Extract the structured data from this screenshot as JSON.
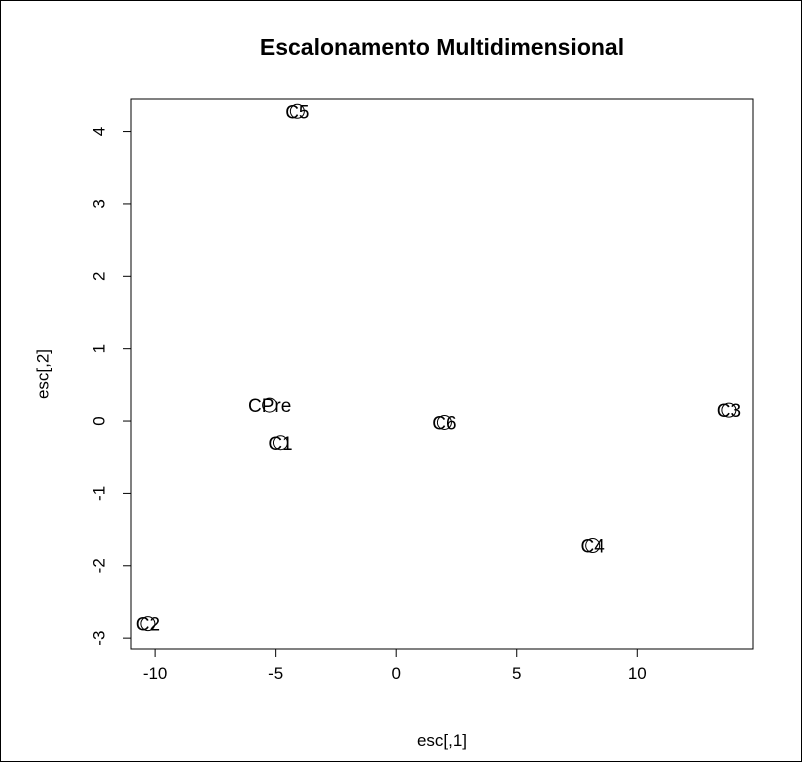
{
  "chart_data": {
    "type": "scatter",
    "title": "Escalonamento Multidimensional",
    "xlabel": "esc[,1]",
    "ylabel": "esc[,2]",
    "xlim": [
      -11.0,
      14.8
    ],
    "ylim": [
      -3.15,
      4.45
    ],
    "x_ticks": [
      -10,
      -5,
      0,
      5,
      10
    ],
    "y_ticks": [
      -3,
      -2,
      -1,
      0,
      1,
      2,
      3,
      4
    ],
    "grid": false,
    "legend": "none",
    "points": [
      {
        "label": "C5",
        "x": -4.1,
        "y": 4.28
      },
      {
        "label": "CPre",
        "x": -5.25,
        "y": 0.22
      },
      {
        "label": "C1",
        "x": -4.8,
        "y": -0.3
      },
      {
        "label": "C6",
        "x": 2.0,
        "y": -0.02
      },
      {
        "label": "C3",
        "x": 13.8,
        "y": 0.15
      },
      {
        "label": "C4",
        "x": 8.15,
        "y": -1.72
      },
      {
        "label": "C2",
        "x": -10.3,
        "y": -2.8
      }
    ],
    "marker_color": "#000000"
  }
}
